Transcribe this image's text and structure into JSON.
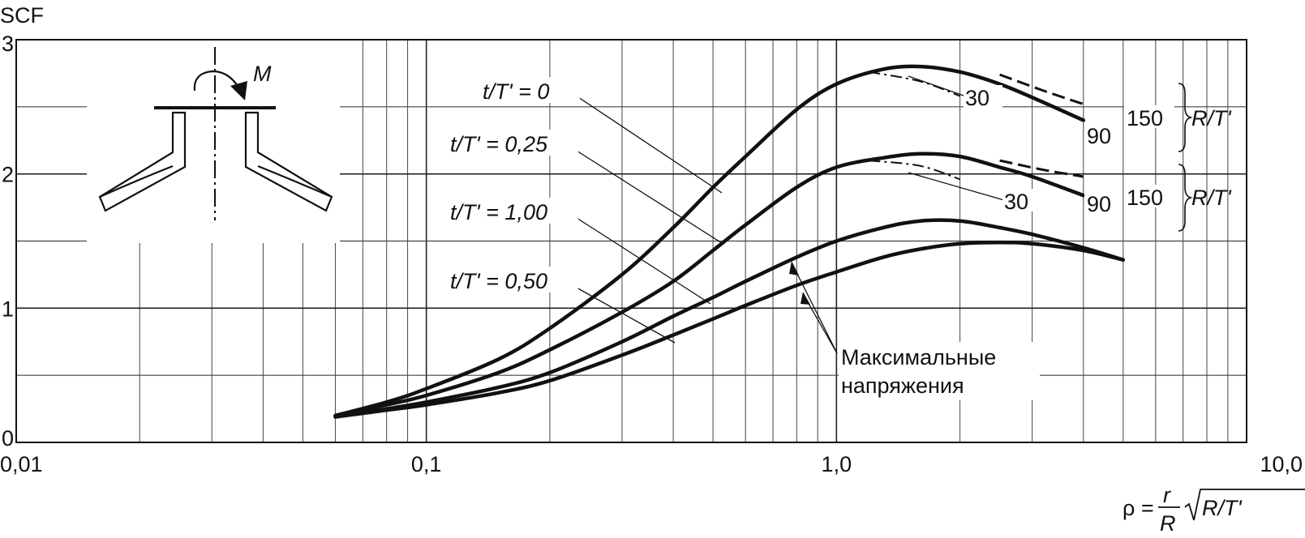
{
  "chart_data": {
    "type": "line",
    "title": "",
    "ylabel": "SCF",
    "xlabel": {
      "prefix": "ρ =",
      "frac_num": "r",
      "frac_den": "R",
      "radicand": "R/T'"
    },
    "x_scale": "log",
    "xlim": [
      0.01,
      10.0
    ],
    "ylim": [
      0,
      3
    ],
    "x_ticks": [
      {
        "value": 0.01,
        "label": "0,01"
      },
      {
        "value": 0.1,
        "label": "0,1"
      },
      {
        "value": 1.0,
        "label": "1,0"
      },
      {
        "value": 10.0,
        "label": "10,0"
      }
    ],
    "y_ticks": [
      {
        "value": 0,
        "label": "0"
      },
      {
        "value": 1,
        "label": "1"
      },
      {
        "value": 2,
        "label": "2"
      },
      {
        "value": 3,
        "label": "3"
      }
    ],
    "y_minor_gridlines": [
      0.5,
      1.5,
      2.5
    ],
    "grid": true,
    "series": [
      {
        "name": "t/T' = 0",
        "style": "solid",
        "x": [
          0.06,
          0.08,
          0.1,
          0.15,
          0.2,
          0.3,
          0.4,
          0.5,
          0.6,
          0.8,
          1.0,
          1.3,
          1.6,
          2.0,
          2.5,
          3.0,
          4.0
        ],
        "y": [
          0.2,
          0.3,
          0.4,
          0.62,
          0.85,
          1.25,
          1.6,
          1.9,
          2.13,
          2.48,
          2.67,
          2.78,
          2.8,
          2.76,
          2.67,
          2.57,
          2.4
        ]
      },
      {
        "name": "t/T' = 0,25",
        "style": "solid",
        "x": [
          0.06,
          0.08,
          0.1,
          0.15,
          0.2,
          0.3,
          0.4,
          0.5,
          0.6,
          0.8,
          1.0,
          1.3,
          1.6,
          2.0,
          2.5,
          3.0,
          4.0
        ],
        "y": [
          0.2,
          0.28,
          0.35,
          0.52,
          0.69,
          0.97,
          1.2,
          1.43,
          1.62,
          1.9,
          2.05,
          2.12,
          2.15,
          2.13,
          2.05,
          1.98,
          1.84
        ]
      },
      {
        "name": "t/T' = 1,00",
        "style": "solid",
        "x": [
          0.06,
          0.08,
          0.1,
          0.15,
          0.2,
          0.3,
          0.4,
          0.5,
          0.6,
          0.8,
          1.0,
          1.3,
          1.6,
          2.0,
          2.5,
          3.0,
          4.0,
          5.0
        ],
        "y": [
          0.19,
          0.25,
          0.3,
          0.41,
          0.52,
          0.75,
          0.94,
          1.08,
          1.2,
          1.38,
          1.5,
          1.6,
          1.65,
          1.65,
          1.6,
          1.55,
          1.45,
          1.36
        ]
      },
      {
        "name": "t/T' = 0,50",
        "style": "solid",
        "x": [
          0.06,
          0.08,
          0.1,
          0.15,
          0.2,
          0.3,
          0.4,
          0.5,
          0.6,
          0.8,
          1.0,
          1.3,
          1.6,
          2.0,
          2.5,
          3.0,
          4.0,
          5.0
        ],
        "y": [
          0.19,
          0.24,
          0.28,
          0.37,
          0.46,
          0.65,
          0.8,
          0.92,
          1.02,
          1.17,
          1.27,
          1.38,
          1.44,
          1.48,
          1.49,
          1.48,
          1.43,
          1.36
        ]
      },
      {
        "name": "R/T' = 30",
        "style": "dashdot",
        "x": [
          1.2,
          1.6,
          2.0
        ],
        "y": [
          2.76,
          2.69,
          2.58
        ]
      },
      {
        "name": "R/T' = 150",
        "style": "dashed",
        "x": [
          2.5,
          3.2,
          4.0
        ],
        "y": [
          2.74,
          2.62,
          2.52
        ]
      },
      {
        "name": "R/T' = 30",
        "style": "dashdot",
        "x": [
          1.2,
          1.6,
          2.0
        ],
        "y": [
          2.1,
          2.06,
          1.96
        ]
      },
      {
        "name": "R/T' = 150",
        "style": "dashed",
        "x": [
          2.5,
          3.2,
          4.0
        ],
        "y": [
          2.1,
          2.03,
          1.98
        ]
      }
    ],
    "curve_labels": [
      {
        "text": "t/T' = 0"
      },
      {
        "text": "t/T' = 0,25"
      },
      {
        "text": "t/T' = 1,00"
      },
      {
        "text": "t/T' = 0,50"
      }
    ],
    "group_labels": {
      "upper": {
        "r30": "30",
        "r90": "90",
        "r150": "150",
        "param": "R/T'"
      },
      "lower": {
        "r30": "30",
        "r90": "90",
        "r150": "150",
        "param": "R/T'"
      }
    },
    "annotation": {
      "line1": "Максимальные",
      "line2": "напряжения"
    },
    "inset": {
      "moment_label": "M"
    }
  }
}
